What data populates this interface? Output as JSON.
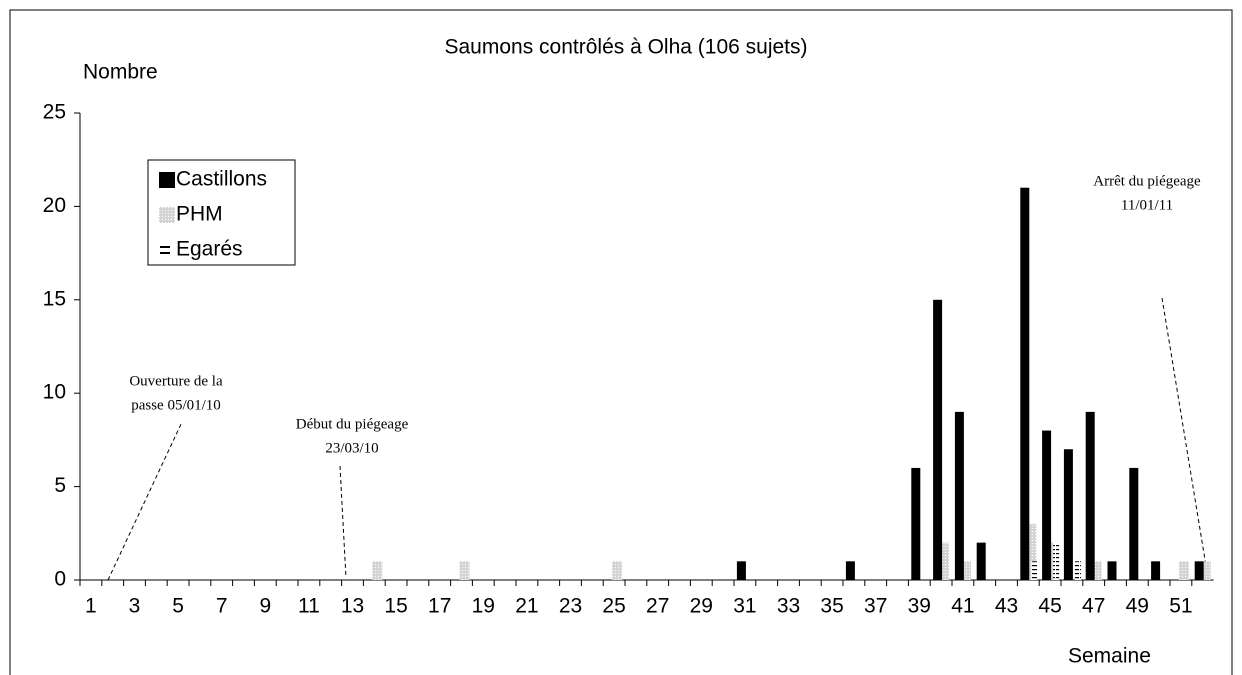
{
  "chart_data": {
    "type": "bar",
    "title": "Saumons contrôlés à Olha (106 sujets)",
    "y_label": "Nombre",
    "x_label": "Semaine",
    "categories": [
      "1",
      null,
      "3",
      null,
      "5",
      null,
      "7",
      null,
      "9",
      null,
      "11",
      null,
      "13",
      null,
      "15",
      null,
      "17",
      null,
      "19",
      null,
      "21",
      null,
      "23",
      null,
      "25",
      null,
      "27",
      null,
      "29",
      null,
      "31",
      null,
      "33",
      null,
      "35",
      null,
      "37",
      null,
      "39",
      null,
      "41",
      null,
      "43",
      null,
      "45",
      null,
      "47",
      null,
      "49",
      null,
      "51",
      null
    ],
    "series": [
      {
        "name": "Castillons",
        "color": "#000000",
        "values": [
          0,
          0,
          0,
          0,
          0,
          0,
          0,
          0,
          0,
          0,
          0,
          0,
          0,
          0,
          0,
          0,
          0,
          0,
          0,
          0,
          0,
          0,
          0,
          0,
          0,
          0,
          0,
          0,
          0,
          0,
          1,
          0,
          0,
          0,
          0,
          1,
          0,
          0,
          6,
          15,
          9,
          2,
          0,
          21,
          8,
          7,
          9,
          1,
          6,
          1,
          0,
          1
        ]
      },
      {
        "name": "PHM",
        "color": "#d4d4d4",
        "values": [
          0,
          0,
          0,
          0,
          0,
          0,
          0,
          0,
          0,
          0,
          0,
          0,
          0,
          1,
          0,
          0,
          0,
          1,
          0,
          0,
          0,
          0,
          0,
          0,
          1,
          0,
          0,
          0,
          0,
          0,
          0,
          0,
          0,
          0,
          0,
          0,
          0,
          0,
          0,
          2,
          1,
          0,
          0,
          3,
          2,
          0,
          1,
          0,
          0,
          0,
          1,
          1
        ]
      },
      {
        "name": "Egarés",
        "color": "#000000",
        "values": [
          0,
          0,
          0,
          0,
          0,
          0,
          0,
          0,
          0,
          0,
          0,
          0,
          0,
          0,
          0,
          0,
          0,
          0,
          0,
          0,
          0,
          0,
          0,
          0,
          0,
          0,
          0,
          0,
          0,
          0,
          0,
          0,
          0,
          0,
          0,
          0,
          0,
          0,
          0,
          0,
          0,
          0,
          0,
          1,
          2,
          1,
          0,
          0,
          0,
          0,
          0,
          0
        ]
      }
    ],
    "ylim": [
      0,
      25
    ],
    "yticks": [
      0,
      5,
      10,
      15,
      20,
      25
    ],
    "annotations": [
      {
        "lines": [
          "Ouverture de la",
          "passe  05/01/10"
        ]
      },
      {
        "lines": [
          "Début du piégeage",
          "23/03/10"
        ]
      },
      {
        "lines": [
          "Arrêt du piégeage",
          "11/01/11"
        ]
      }
    ]
  }
}
